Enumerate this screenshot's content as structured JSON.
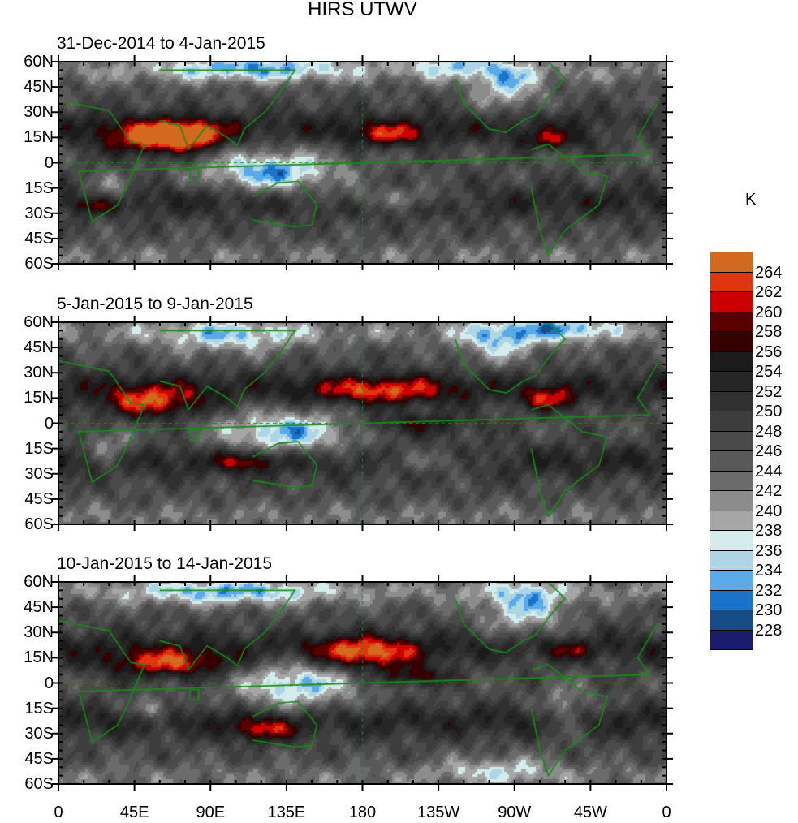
{
  "chart_data": {
    "type": "heatmap",
    "title": "HIRS UTWV",
    "unit_label": "K",
    "panels": [
      {
        "title": "31-Dec-2014 to 4-Jan-2015"
      },
      {
        "title": "5-Jan-2015 to 9-Jan-2015"
      },
      {
        "title": "10-Jan-2015 to 14-Jan-2015"
      }
    ],
    "y_ticks": [
      "60N",
      "45N",
      "30N",
      "15N",
      "0",
      "15S",
      "30S",
      "45S",
      "60S"
    ],
    "y_range": [
      -60,
      60
    ],
    "x_ticks": [
      "0",
      "45E",
      "90E",
      "135E",
      "180",
      "135W",
      "90W",
      "45W",
      "0"
    ],
    "x_range": [
      0,
      360
    ],
    "colorbar": {
      "labels": [
        "264",
        "262",
        "260",
        "258",
        "256",
        "254",
        "252",
        "250",
        "248",
        "246",
        "244",
        "242",
        "240",
        "238",
        "236",
        "234",
        "232",
        "230",
        "228"
      ],
      "levels": [
        264,
        262,
        260,
        258,
        256,
        254,
        252,
        250,
        248,
        246,
        244,
        242,
        240,
        238,
        236,
        234,
        232,
        230,
        228
      ],
      "colors": [
        "#d2691e",
        "#e0360f",
        "#cc0000",
        "#5a0000",
        "#350000",
        "#1b1b1b",
        "#262626",
        "#303030",
        "#3d3d3d",
        "#4a4a4a",
        "#595959",
        "#6b6b6b",
        "#8c8c8c",
        "#a6a6a6",
        "#d4ecec",
        "#aed5e6",
        "#5aaae9",
        "#1a73c9",
        "#154b87",
        "#1a1a6e"
      ]
    },
    "overlay_color": "#1a8a1a"
  }
}
